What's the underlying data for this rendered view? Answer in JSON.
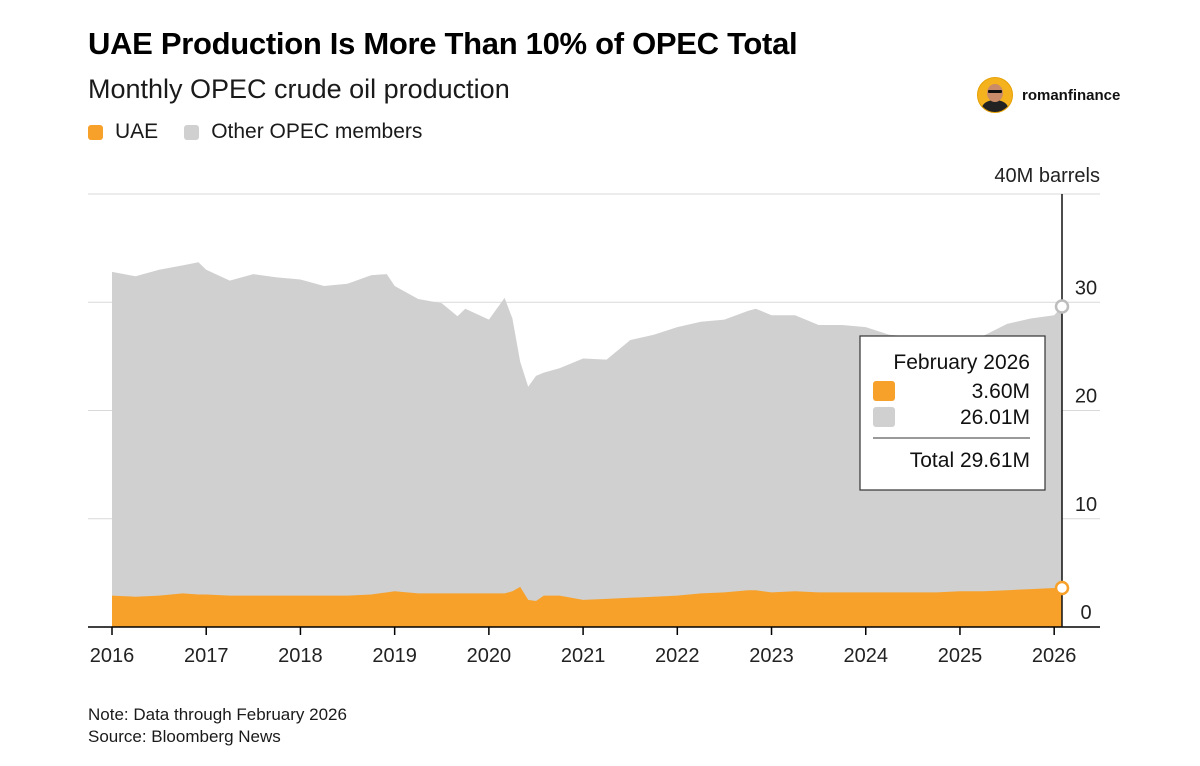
{
  "header": {
    "title": "UAE Production Is More Than 10% of OPEC Total",
    "subtitle": "Monthly OPEC crude oil production"
  },
  "brand": {
    "name": "romanfinance",
    "icon": "avatar-icon"
  },
  "legend": [
    {
      "label": "UAE",
      "color": "#f7a12a"
    },
    {
      "label": "Other OPEC members",
      "color": "#d0d0d0"
    }
  ],
  "footer": {
    "note": "Note: Data through February 2026",
    "source": "Source: Bloomberg News"
  },
  "tooltip": {
    "date": "February 2026",
    "uae_value": "3.60M",
    "other_value": "26.01M",
    "total": "Total 29.61M"
  },
  "chart_data": {
    "type": "area",
    "stacked": true,
    "unit_label": "40M barrels",
    "ylim": [
      0,
      40
    ],
    "y_ticks": [
      "0",
      "10",
      "20",
      "30"
    ],
    "x_tick_labels": [
      "2016",
      "2017",
      "2018",
      "2019",
      "2020",
      "2021",
      "2022",
      "2023",
      "2024",
      "2025",
      "2026"
    ],
    "x_range": [
      2016.0,
      2026.083
    ],
    "grid": true,
    "colors": {
      "UAE": "#f7a12a",
      "Other OPEC members": "#d0d0d0"
    },
    "x": [
      2016.0,
      2016.25,
      2016.5,
      2016.75,
      2016.917,
      2017.0,
      2017.25,
      2017.5,
      2017.75,
      2018.0,
      2018.25,
      2018.5,
      2018.75,
      2018.917,
      2019.0,
      2019.25,
      2019.5,
      2019.667,
      2019.75,
      2020.0,
      2020.167,
      2020.25,
      2020.333,
      2020.417,
      2020.5,
      2020.583,
      2020.75,
      2021.0,
      2021.25,
      2021.5,
      2021.75,
      2022.0,
      2022.25,
      2022.5,
      2022.75,
      2022.833,
      2023.0,
      2023.25,
      2023.5,
      2023.75,
      2024.0,
      2024.25,
      2024.5,
      2024.75,
      2025.0,
      2025.25,
      2025.5,
      2025.75,
      2026.0,
      2026.083
    ],
    "series": [
      {
        "name": "UAE",
        "values": [
          2.9,
          2.8,
          2.9,
          3.1,
          3.0,
          3.0,
          2.9,
          2.9,
          2.9,
          2.9,
          2.9,
          2.9,
          3.0,
          3.2,
          3.3,
          3.1,
          3.1,
          3.1,
          3.1,
          3.1,
          3.1,
          3.3,
          3.7,
          2.5,
          2.4,
          2.9,
          2.9,
          2.5,
          2.6,
          2.7,
          2.8,
          2.9,
          3.1,
          3.2,
          3.4,
          3.4,
          3.2,
          3.3,
          3.2,
          3.2,
          3.2,
          3.2,
          3.2,
          3.2,
          3.3,
          3.3,
          3.4,
          3.5,
          3.6,
          3.6
        ]
      },
      {
        "name": "Other OPEC members",
        "values": [
          29.9,
          29.6,
          30.1,
          30.3,
          30.7,
          30.0,
          29.1,
          29.7,
          29.4,
          29.2,
          28.6,
          28.8,
          29.5,
          29.4,
          28.2,
          27.2,
          26.8,
          25.6,
          26.3,
          25.3,
          27.3,
          25.2,
          20.8,
          19.7,
          20.8,
          20.6,
          21.0,
          22.3,
          22.1,
          23.8,
          24.2,
          24.8,
          25.1,
          25.2,
          25.8,
          26.0,
          25.6,
          25.5,
          24.7,
          24.7,
          24.5,
          23.8,
          23.6,
          23.4,
          23.4,
          23.6,
          24.6,
          25.0,
          25.2,
          26.01
        ]
      }
    ]
  }
}
